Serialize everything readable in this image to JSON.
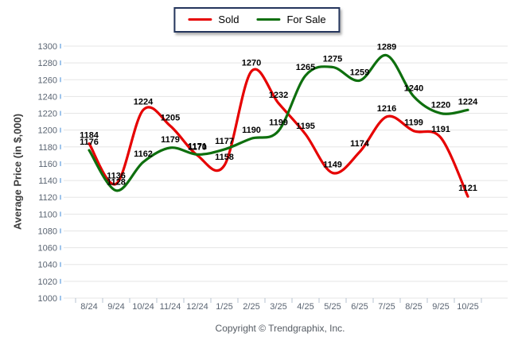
{
  "legend": {
    "items": [
      {
        "label": "Sold",
        "color": "#e60000"
      },
      {
        "label": "For Sale",
        "color": "#0e6f0e"
      }
    ]
  },
  "chart_data": {
    "type": "line",
    "title": "",
    "xlabel": "",
    "ylabel": "Average Price (in $,000)",
    "categories": [
      "8/24",
      "9/24",
      "10/24",
      "11/24",
      "12/24",
      "1/25",
      "2/25",
      "3/25",
      "4/25",
      "5/25",
      "6/25",
      "7/25",
      "8/25",
      "9/25",
      "10/25"
    ],
    "series": [
      {
        "name": "Sold",
        "color": "#e60000",
        "values": [
          1184,
          1136,
          1224,
          1205,
          1170,
          1158,
          1270,
          1232,
          1195,
          1149,
          1174,
          1216,
          1199,
          1191,
          1121
        ]
      },
      {
        "name": "For Sale",
        "color": "#0e6f0e",
        "values": [
          1176,
          1128,
          1162,
          1179,
          1171,
          1177,
          1190,
          1199,
          1265,
          1275,
          1259,
          1289,
          1240,
          1220,
          1224
        ]
      }
    ],
    "ylim": [
      1000,
      1300
    ],
    "ytick_step": 20,
    "grid": "horizontal-only",
    "legend_position": "top-center",
    "smooth": true,
    "data_labels": true
  },
  "footer": {
    "copyright": "Copyright © Trendgraphix, Inc."
  },
  "style": {
    "grid_color": "#e5e5e5",
    "y_tick_color": "#9fc5ec",
    "x_tick_color": "#b7c3d0",
    "tick_label_color": "#5a6472",
    "data_label_color": "#000000",
    "legend_border_color": "#24355c"
  }
}
